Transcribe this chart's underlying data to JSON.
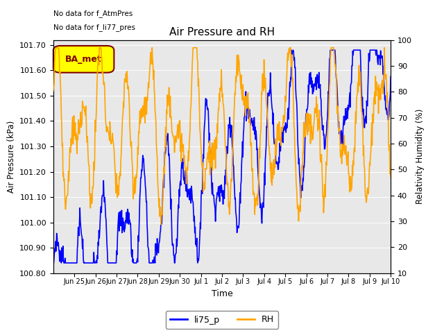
{
  "title": "Air Pressure and RH",
  "xlabel": "Time",
  "ylabel_left": "Air Pressure (kPa)",
  "ylabel_right": "Relativity Humidity (%)",
  "ylim_left": [
    100.8,
    101.72
  ],
  "ylim_right": [
    10,
    100
  ],
  "yticks_left": [
    100.8,
    100.9,
    101.0,
    101.1,
    101.2,
    101.3,
    101.4,
    101.5,
    101.6,
    101.7
  ],
  "yticks_right": [
    10,
    20,
    30,
    40,
    50,
    60,
    70,
    80,
    90,
    100
  ],
  "text_no_data1": "No data for f_AtmPres",
  "text_no_data2": "No data for f_li77_pres",
  "ba_met_label": "BA_met",
  "legend_labels": [
    "li75_p",
    "RH"
  ],
  "line_color_blue": "#0000FF",
  "line_color_orange": "#FFA500",
  "bg_color": "#E8E8E8",
  "ba_met_bg": "#FFFF00",
  "ba_met_border": "#800000",
  "tick_labels": [
    "Jun 25",
    "Jun 26",
    "Jun 27",
    "Jun 28",
    "Jun 29",
    "Jun 30",
    "Jul 1",
    "Jul 2",
    "Jul 3",
    "Jul 4",
    "Jul 5",
    "Jul 6",
    "Jul 7",
    "Jul 8",
    "Jul 9",
    "Jul 10"
  ]
}
